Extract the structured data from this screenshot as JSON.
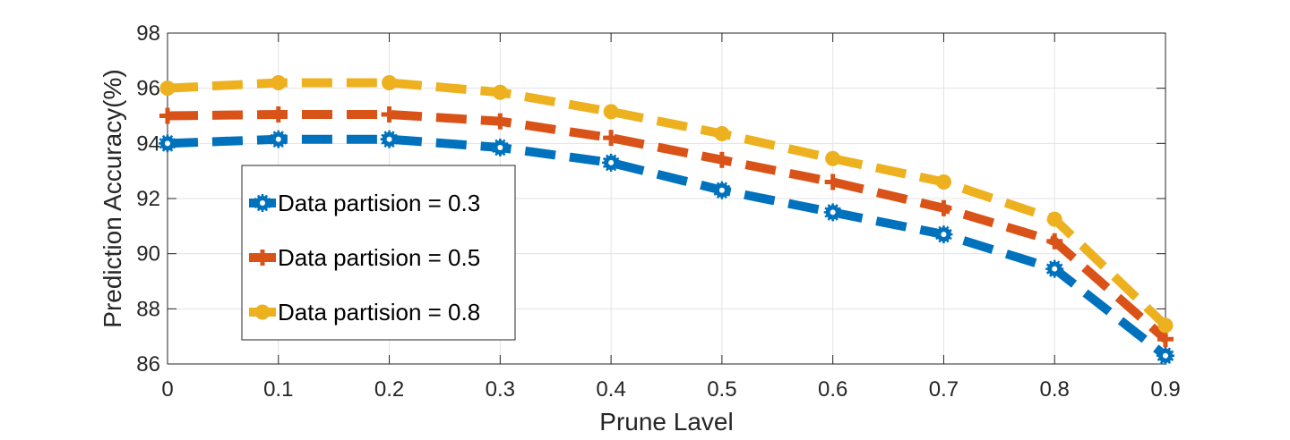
{
  "chart_data": {
    "type": "line",
    "xlabel": "Prune Lavel",
    "ylabel": "Prediction Accuracy(%)",
    "xlim": [
      0,
      0.9
    ],
    "ylim": [
      86,
      98
    ],
    "xticks": [
      0,
      0.1,
      0.2,
      0.3,
      0.4,
      0.5,
      0.6,
      0.7,
      0.8,
      0.9
    ],
    "xtick_labels": [
      "0",
      "0.1",
      "0.2",
      "0.3",
      "0.4",
      "0.5",
      "0.6",
      "0.7",
      "0.8",
      "0.9"
    ],
    "yticks": [
      86,
      88,
      90,
      92,
      94,
      96,
      98
    ],
    "ytick_labels": [
      "86",
      "88",
      "90",
      "92",
      "94",
      "96",
      "98"
    ],
    "grid": true,
    "legend_position": "left-center",
    "x": [
      0,
      0.1,
      0.2,
      0.3,
      0.4,
      0.5,
      0.6,
      0.7,
      0.8,
      0.9
    ],
    "series": [
      {
        "name": "Data partision = 0.3",
        "color": "#0072BD",
        "marker": "asterisk-circle",
        "values": [
          94.0,
          94.15,
          94.15,
          93.85,
          93.3,
          92.3,
          91.5,
          90.7,
          89.45,
          86.3
        ]
      },
      {
        "name": "Data partision = 0.5",
        "color": "#D95319",
        "marker": "plus",
        "values": [
          95.0,
          95.05,
          95.05,
          94.8,
          94.2,
          93.4,
          92.6,
          91.65,
          90.45,
          86.9
        ]
      },
      {
        "name": "Data partision = 0.8",
        "color": "#EDB120",
        "marker": "circle",
        "values": [
          96.0,
          96.2,
          96.2,
          95.85,
          95.15,
          94.35,
          93.45,
          92.6,
          91.25,
          87.4
        ]
      }
    ]
  }
}
